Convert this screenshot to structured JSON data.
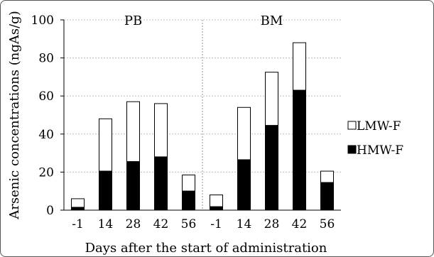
{
  "chart_data": {
    "type": "bar",
    "stacked": true,
    "xlabel": "Days after the start of administration",
    "ylabel": "Arsenic concentrations (ngAs/g)",
    "ylim": [
      0,
      100
    ],
    "yticks": [
      "0",
      "20",
      "40",
      "60",
      "80",
      "100"
    ],
    "grid": true,
    "legend_position": "right",
    "groups": [
      {
        "label": "PB",
        "categories": [
          "-1",
          "14",
          "28",
          "42",
          "56"
        ]
      },
      {
        "label": "BM",
        "categories": [
          "-1",
          "14",
          "28",
          "42",
          "56"
        ]
      }
    ],
    "series": [
      {
        "name": "HMW-F",
        "color": "#000000",
        "values": [
          1.5,
          20.5,
          25.5,
          28,
          10,
          1.8,
          26.5,
          44.5,
          63,
          14.5
        ]
      },
      {
        "name": "LMW-F",
        "color": "#ffffff",
        "values": [
          4.5,
          27.5,
          31.5,
          28,
          8.5,
          6.2,
          27.5,
          28,
          25,
          6
        ]
      }
    ]
  }
}
